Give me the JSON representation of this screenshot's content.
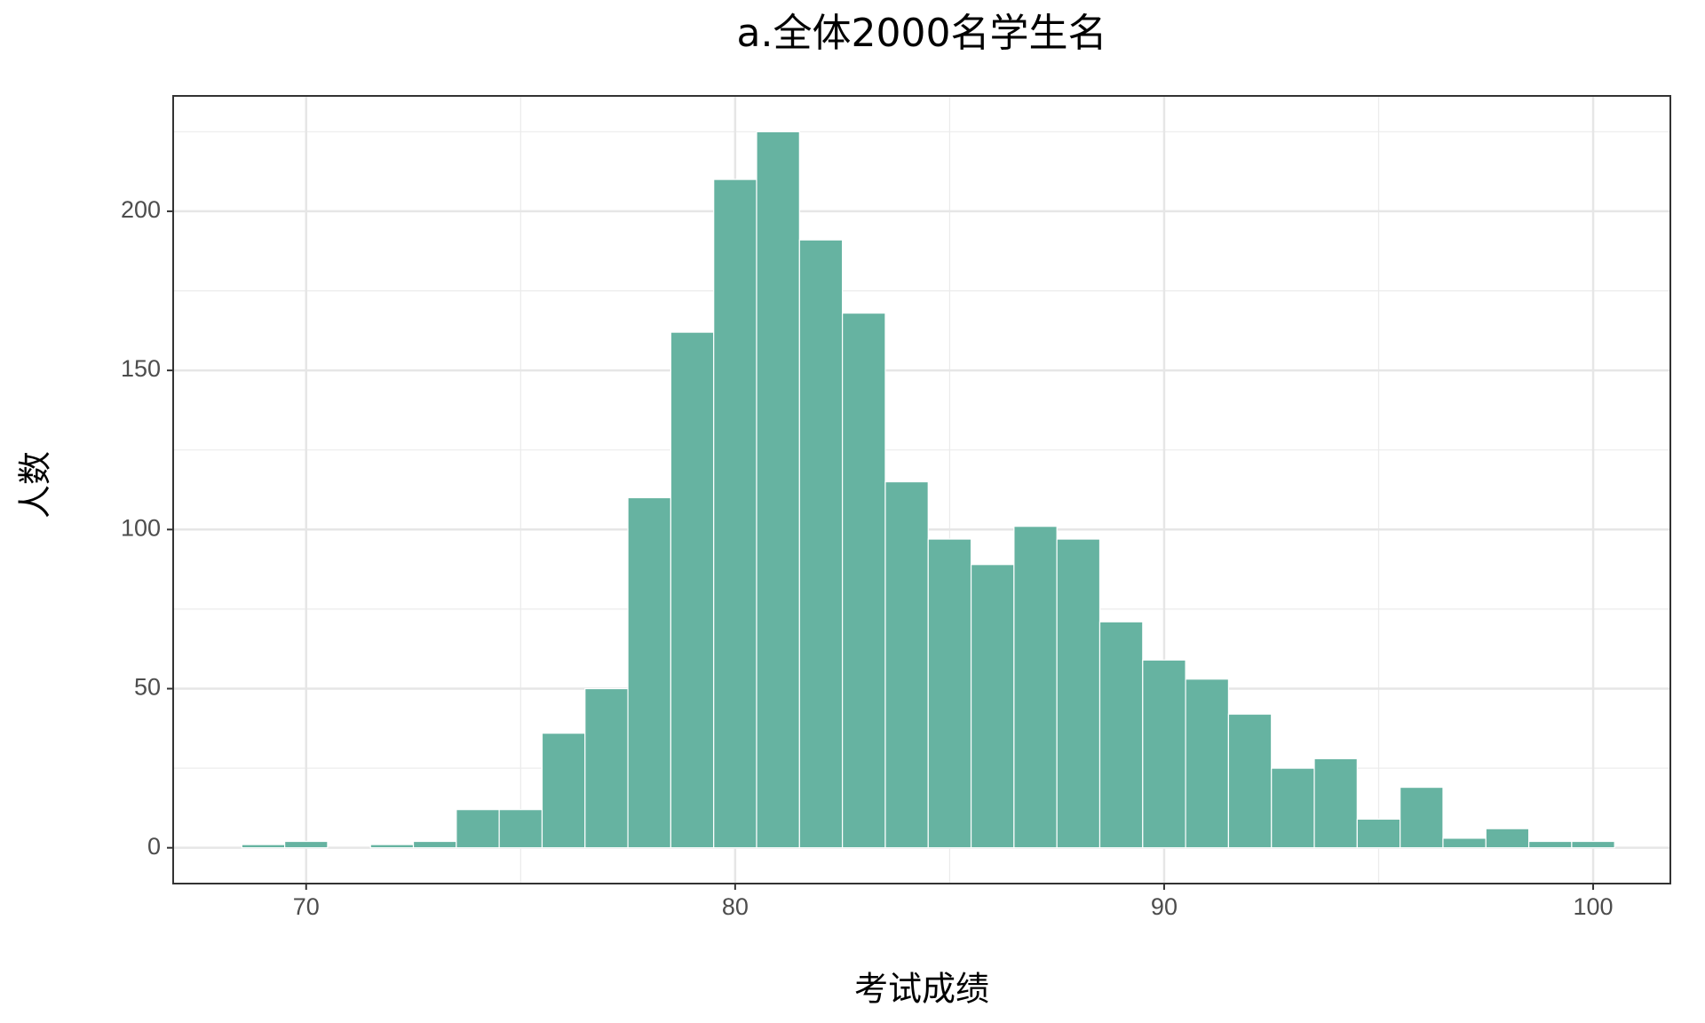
{
  "chart_data": {
    "type": "histogram",
    "title": "a.全体2000名学生名",
    "x_label": "考试成绩",
    "y_label": "人数",
    "bins": [
      68.5,
      69.5,
      70.5,
      71.5,
      72.5,
      73.5,
      74.5,
      75.5,
      76.5,
      77.5,
      78.5,
      79.5,
      80.5,
      81.5,
      82.5,
      83.5,
      84.5,
      85.5,
      86.5,
      87.5,
      88.5,
      89.5,
      90.5,
      91.5,
      92.5,
      93.5,
      94.5,
      95.5,
      96.5,
      97.5,
      98.5,
      99.5,
      100.5
    ],
    "values": [
      1,
      2,
      0,
      1,
      2,
      12,
      12,
      36,
      50,
      110,
      162,
      210,
      225,
      191,
      168,
      115,
      97,
      89,
      101,
      97,
      71,
      59,
      53,
      42,
      25,
      28,
      9,
      19,
      3,
      6,
      2,
      2
    ],
    "color": "#66b3a1",
    "edge_color": "#ffffff",
    "xlim": [
      66.9,
      101.8
    ],
    "ylim": [
      -11.25,
      236.25
    ],
    "xticks": [
      70,
      80,
      90,
      100
    ],
    "yticks": [
      0,
      50,
      100,
      150,
      200
    ],
    "xminor_ticks": [
      75,
      85,
      95
    ],
    "yminor_ticks": [
      25,
      75,
      125,
      175,
      225
    ],
    "grid": true
  }
}
